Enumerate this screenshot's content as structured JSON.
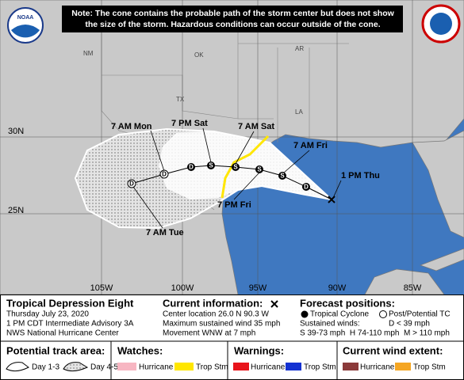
{
  "note": "Note: The cone contains the probable path of the storm center but does not show the size of the storm. Hazardous conditions can occur outside of the cone.",
  "logo": "NOAA",
  "map": {
    "states": [
      "NM",
      "OK",
      "AR",
      "TX",
      "LA"
    ],
    "lat_labels": [
      "30N",
      "25N"
    ],
    "lon_labels": [
      "105W",
      "100W",
      "95W",
      "90W",
      "85W"
    ],
    "forecast_labels": [
      "7 AM Mon",
      "7 PM Sat",
      "7 AM Sat",
      "7 AM Fri",
      "1 PM Thu",
      "7 PM Fri",
      "7 AM Tue"
    ],
    "markers": [
      "D",
      "D",
      "D",
      "S",
      "S",
      "S",
      "S",
      "D"
    ]
  },
  "storm": {
    "name": "Tropical Depression Eight",
    "date": "Thursday July 23, 2020",
    "advisory": "1 PM CDT Intermediate Advisory 3A",
    "center": "NWS National Hurricane Center"
  },
  "current": {
    "title": "Current information:",
    "lines": [
      "Center location 26.0 N 90.3 W",
      "Maximum sustained wind 35 mph",
      "Movement WNW at 7 mph"
    ]
  },
  "forecast": {
    "title": "Forecast positions:",
    "tc": "Tropical Cyclone",
    "ptc": "Post/Potential TC",
    "winds": "Sustained winds:",
    "d": "D < 39 mph",
    "scale": "S 39-73 mph  H 74-110 mph  M > 110 mph"
  },
  "legend": {
    "track": {
      "title": "Potential track area:",
      "day13": "Day 1-3",
      "day45": "Day 4-5"
    },
    "watches": {
      "title": "Watches:",
      "hurricane": "Hurricane",
      "tropical_storm": "Trop Stm"
    },
    "warnings": {
      "title": "Warnings:",
      "hurricane": "Hurricane",
      "tropical_storm": "Trop Stm"
    },
    "wind": {
      "title": "Current wind extent:",
      "hurricane": "Hurricane",
      "tropical_storm": "Trop Stm"
    }
  }
}
